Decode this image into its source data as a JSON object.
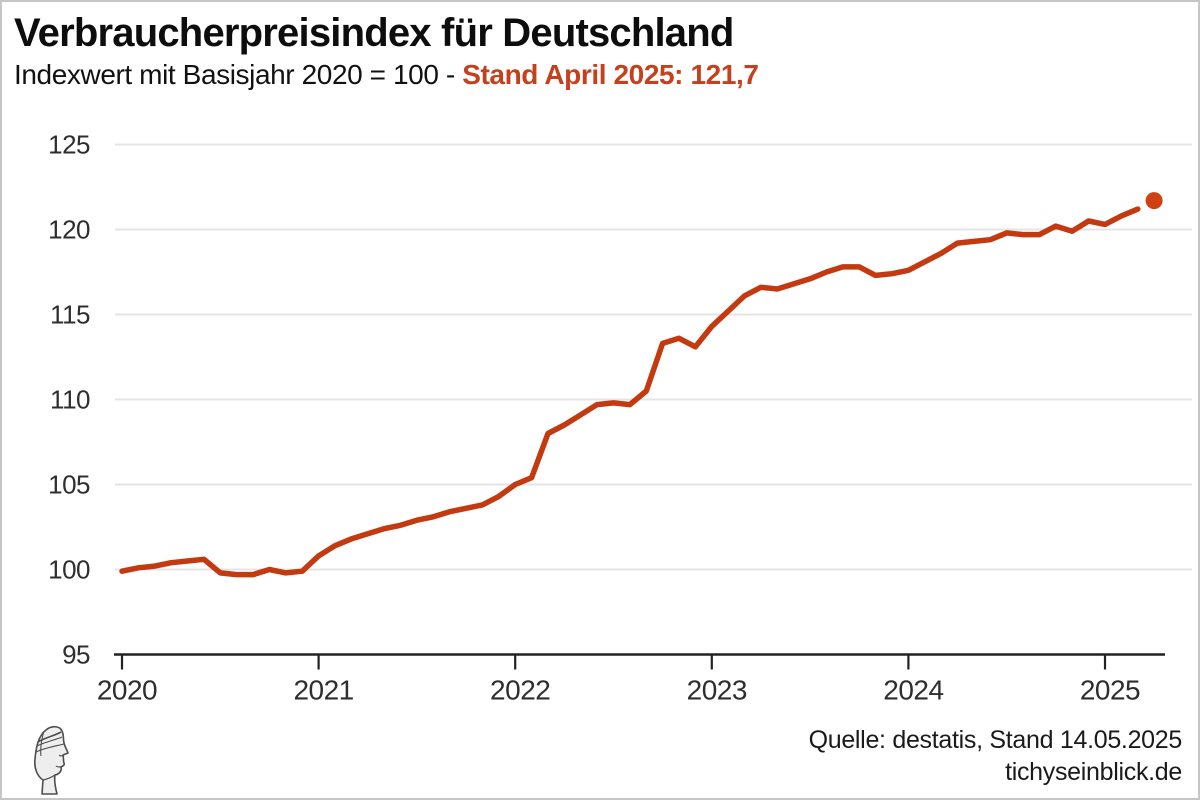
{
  "header": {
    "title": "Verbraucherpreisindex für Deutschland",
    "subtitle_prefix": "Indexwert mit Basisjahr 2020 = 100 - ",
    "subtitle_highlight": "Stand April 2025: 121,7",
    "highlight_color": "#c5401c"
  },
  "footer": {
    "source_line": "Quelle: destatis, Stand 14.05.2025",
    "site_line": "tichyseinblick.de",
    "logo": "tichys-einblick-profile-logo"
  },
  "chart_data": {
    "type": "line",
    "title": "Verbraucherpreisindex für Deutschland",
    "subtitle": "Indexwert mit Basisjahr 2020 = 100 - Stand April 2025: 121,7",
    "start_month": "2020-01",
    "end_month": "2025-04",
    "x_tick_labels": [
      "2020",
      "2021",
      "2022",
      "2023",
      "2024",
      "2025"
    ],
    "y_ticks": [
      95,
      100,
      105,
      110,
      115,
      120,
      125
    ],
    "ylim": [
      95,
      125
    ],
    "grid": "horizontal-only",
    "legend": "none",
    "last_point": {
      "label": "April 2025",
      "value": 121.7,
      "marker": "dot",
      "detached": true
    },
    "series": [
      {
        "name": "Verbraucherpreisindex (2020 = 100)",
        "values": [
          99.9,
          100.1,
          100.2,
          100.4,
          100.5,
          100.6,
          99.8,
          99.7,
          99.7,
          100.0,
          99.8,
          99.9,
          100.8,
          101.4,
          101.8,
          102.1,
          102.4,
          102.6,
          102.9,
          103.1,
          103.4,
          103.6,
          103.8,
          104.3,
          105.0,
          105.4,
          108.0,
          108.5,
          109.1,
          109.7,
          109.8,
          109.7,
          110.5,
          113.3,
          113.6,
          113.1,
          114.3,
          115.2,
          116.1,
          116.6,
          116.5,
          116.8,
          117.1,
          117.5,
          117.8,
          117.8,
          117.3,
          117.4,
          117.6,
          118.1,
          118.6,
          119.2,
          119.3,
          119.4,
          119.8,
          119.7,
          119.7,
          120.2,
          119.9,
          120.5,
          120.3,
          120.8,
          121.2,
          121.7
        ]
      }
    ],
    "colors": {
      "line": "#c43a10",
      "dot": "#cf4210",
      "grid": "#e4e4e4",
      "axis": "#222222",
      "tick_label": "#2e2e2e"
    }
  }
}
